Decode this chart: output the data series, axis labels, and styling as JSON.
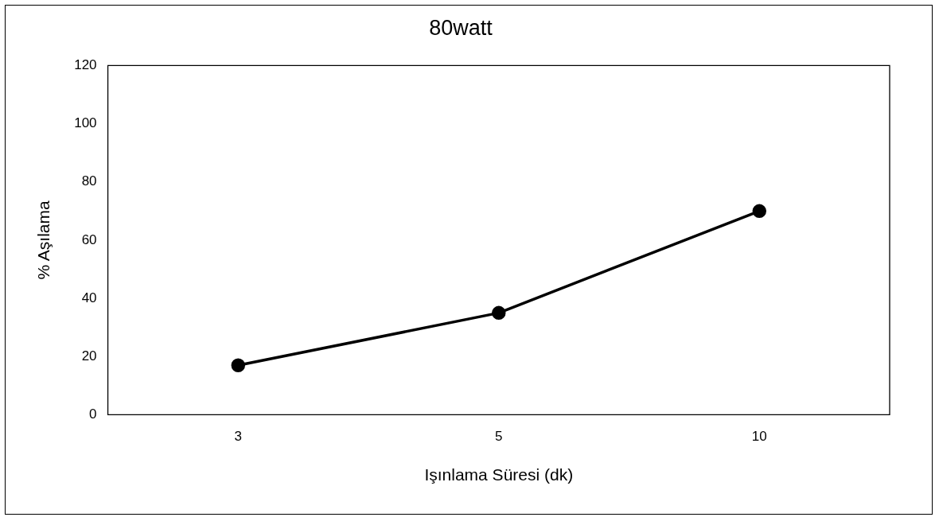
{
  "chart_data": {
    "type": "line",
    "title": "80watt",
    "xlabel": "Işınlama Süresi (dk)",
    "ylabel": "% Aşılama",
    "categories": [
      "3",
      "5",
      "10"
    ],
    "series": [
      {
        "color": "#000000",
        "values": [
          17,
          35,
          70
        ]
      }
    ],
    "ylim": [
      0,
      120
    ],
    "yticks": [
      0,
      20,
      40,
      60,
      80,
      100,
      120
    ],
    "grid": false,
    "legend": false,
    "marker": "circle",
    "line_style": "solid"
  }
}
